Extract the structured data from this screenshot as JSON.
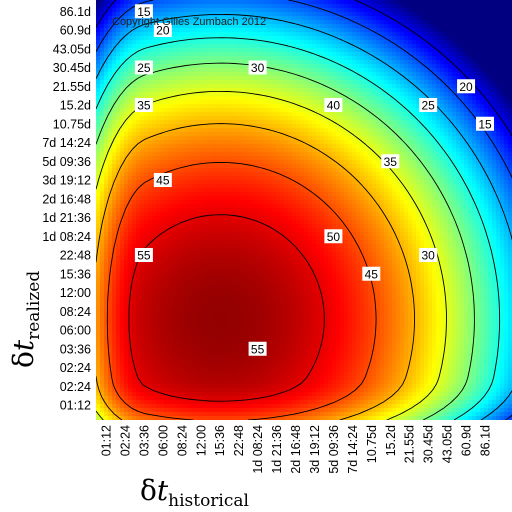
{
  "chart_data": {
    "type": "heatmap",
    "copyright": "Copyright Gilles Zumbach 2012",
    "x_axis": {
      "label_symbol": "δ",
      "label_var": "t",
      "label_subscript": "historical",
      "ticks": [
        "01:12",
        "02:24",
        "03:36",
        "06:00",
        "08:24",
        "12:00",
        "15:36",
        "22:48",
        "1d 08:24",
        "1d 21:36",
        "2d 16:48",
        "3d 19:12",
        "5d 09:36",
        "7d 14:24",
        "10.75d",
        "15.2d",
        "21.55d",
        "30.45d",
        "43.05d",
        "60.9d",
        "86.1d"
      ]
    },
    "y_axis": {
      "label_symbol": "δ",
      "label_var": "t",
      "label_subscript": "realized",
      "ticks": [
        "01:12",
        "02:24",
        "02:24",
        "03:36",
        "06:00",
        "08:24",
        "12:00",
        "15:36",
        "22:48",
        "1d 08:24",
        "1d 21:36",
        "2d 16:48",
        "3d 19:12",
        "5d 09:36",
        "7d 14:24",
        "10.75d",
        "15.2d",
        "21.55d",
        "30.45d",
        "43.05d",
        "60.9d",
        "86.1d"
      ]
    },
    "contour_levels": [
      15,
      20,
      25,
      30,
      35,
      40,
      45,
      50,
      55
    ],
    "contour_labels": [
      {
        "text": "15",
        "near_x": "03:36",
        "near_y": "86.1d"
      },
      {
        "text": "20",
        "near_x": "06:00",
        "near_y": "60.9d"
      },
      {
        "text": "25",
        "near_x": "03:36",
        "near_y": "30.45d"
      },
      {
        "text": "30",
        "near_x": "1d 08:24",
        "near_y": "30.45d"
      },
      {
        "text": "35",
        "near_x": "03:36",
        "near_y": "15.2d"
      },
      {
        "text": "40",
        "near_x": "5d 09:36",
        "near_y": "15.2d"
      },
      {
        "text": "45",
        "near_x": "06:00",
        "near_y": "3d 19:12"
      },
      {
        "text": "55",
        "near_x": "03:36",
        "near_y": "22:48"
      },
      {
        "text": "50",
        "near_x": "5d 09:36",
        "near_y": "1d 08:24"
      },
      {
        "text": "45",
        "near_x": "10.75d",
        "near_y": "15:36"
      },
      {
        "text": "35",
        "near_x": "15.2d",
        "near_y": "5d 09:36"
      },
      {
        "text": "30",
        "near_x": "30.45d",
        "near_y": "22:48"
      },
      {
        "text": "25",
        "near_x": "30.45d",
        "near_y": "15.2d"
      },
      {
        "text": "20",
        "near_x": "60.9d",
        "near_y": "21.55d"
      },
      {
        "text": "15",
        "near_x": "86.1d",
        "near_y": "10.75d"
      },
      {
        "text": "55",
        "near_x": "1d 08:24",
        "near_y": "03:36"
      }
    ],
    "colormap": "jet",
    "value_range": [
      10,
      60
    ],
    "grid": false,
    "legend": "none"
  }
}
